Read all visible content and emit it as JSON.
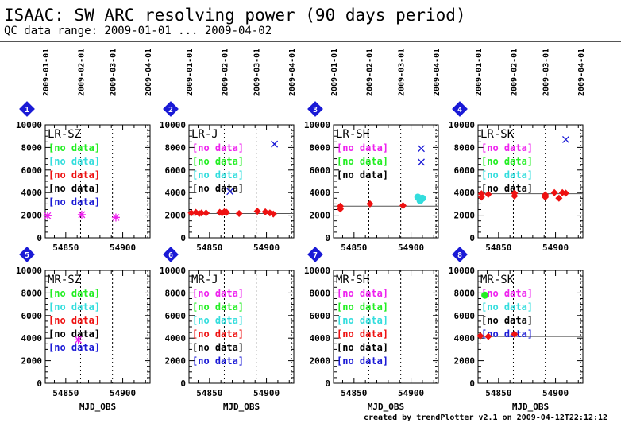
{
  "header": {
    "title": "ISAAC: SW ARC resolving power (90 days period)",
    "subtitle": "QC data range: 2009-01-01 ... 2009-04-02"
  },
  "footer": "created by trendPlotter v2.1 on 2009-04-12T22:12:12",
  "colors": {
    "green": "#22ee22",
    "cyan": "#33dddd",
    "red": "#ee1111",
    "black": "#000000",
    "blue": "#1a1ad6",
    "magenta": "#ee22ee",
    "marker_blue": "#1a1ad6"
  },
  "chart_data": {
    "type": "scatter",
    "date_ticks": [
      "2009-01-01",
      "2009-02-01",
      "2009-03-01",
      "2009-04-01"
    ],
    "date_tick_mjd": [
      54832,
      54863,
      54891,
      54922
    ],
    "xlim": [
      54832,
      54924
    ],
    "ylim": [
      0,
      10000
    ],
    "xticks": [
      54850,
      54900
    ],
    "yticks": [
      0,
      2000,
      4000,
      6000,
      8000,
      10000
    ],
    "xlabel": "MJD_OBS",
    "panels": [
      {
        "number": "1",
        "title": "LR-SZ",
        "reference": null,
        "legend": [
          {
            "text": "[no data]",
            "color": "green"
          },
          {
            "text": "[no data]",
            "color": "cyan"
          },
          {
            "text": "[no data]",
            "color": "red"
          },
          {
            "text": "[no data]",
            "color": "black"
          },
          {
            "text": "[no data]",
            "color": "blue"
          }
        ],
        "series": [
          {
            "marker": "star",
            "color": "magenta",
            "points": [
              [
                54834,
                1950
              ],
              [
                54864,
                2050
              ],
              [
                54894,
                1800
              ]
            ]
          }
        ]
      },
      {
        "number": "2",
        "title": "LR-J",
        "reference": 2150,
        "legend": [
          {
            "text": "[no data]",
            "color": "magenta"
          },
          {
            "text": "[no data]",
            "color": "green"
          },
          {
            "text": "[no data]",
            "color": "cyan"
          },
          {
            "text": "[no data]",
            "color": "black"
          }
        ],
        "series": [
          {
            "marker": "diamond",
            "color": "red",
            "points": [
              [
                54834,
                2200
              ],
              [
                54838,
                2250
              ],
              [
                54841,
                2150
              ],
              [
                54843,
                2200
              ],
              [
                54847,
                2200
              ],
              [
                54859,
                2250
              ],
              [
                54861,
                2200
              ],
              [
                54863,
                2300
              ],
              [
                54865,
                2250
              ],
              [
                54876,
                2150
              ],
              [
                54892,
                2350
              ],
              [
                54899,
                2300
              ],
              [
                54903,
                2200
              ],
              [
                54906,
                2100
              ]
            ]
          },
          {
            "marker": "cross",
            "color": "marker_blue",
            "points": [
              [
                54868,
                4100
              ],
              [
                54907,
                8300
              ]
            ]
          }
        ]
      },
      {
        "number": "3",
        "title": "LR-SH",
        "reference": 2800,
        "legend": [
          {
            "text": "[no data]",
            "color": "magenta"
          },
          {
            "text": "[no data]",
            "color": "green"
          },
          {
            "text": "[no data]",
            "color": "black"
          }
        ],
        "series": [
          {
            "marker": "diamond",
            "color": "red",
            "points": [
              [
                54838,
                2550
              ],
              [
                54838,
                2800
              ],
              [
                54864,
                3000
              ],
              [
                54893,
                2850
              ]
            ]
          },
          {
            "marker": "circle",
            "color": "cyan",
            "points": [
              [
                54906,
                3600
              ],
              [
                54908,
                3300
              ],
              [
                54910,
                3500
              ]
            ]
          },
          {
            "marker": "cross",
            "color": "marker_blue",
            "points": [
              [
                54909,
                7900
              ],
              [
                54909,
                6700
              ]
            ]
          }
        ]
      },
      {
        "number": "4",
        "title": "LR-SK",
        "reference": 3900,
        "legend": [
          {
            "text": "[no data]",
            "color": "magenta"
          },
          {
            "text": "[no data]",
            "color": "green"
          },
          {
            "text": "[no data]",
            "color": "cyan"
          },
          {
            "text": "[no data]",
            "color": "black"
          }
        ],
        "series": [
          {
            "marker": "diamond",
            "color": "red",
            "points": [
              [
                54835,
                3900
              ],
              [
                54835,
                3600
              ],
              [
                54841,
                3850
              ],
              [
                54864,
                3950
              ],
              [
                54864,
                3700
              ],
              [
                54891,
                3800
              ],
              [
                54891,
                3600
              ],
              [
                54899,
                4000
              ],
              [
                54903,
                3500
              ],
              [
                54906,
                4000
              ],
              [
                54909,
                3950
              ]
            ]
          },
          {
            "marker": "cross",
            "color": "marker_blue",
            "points": [
              [
                54909,
                8700
              ]
            ]
          }
        ]
      },
      {
        "number": "5",
        "title": "MR-SZ",
        "reference": null,
        "legend": [
          {
            "text": "[no data]",
            "color": "green"
          },
          {
            "text": "[no data]",
            "color": "cyan"
          },
          {
            "text": "[no data]",
            "color": "red"
          },
          {
            "text": "[no data]",
            "color": "black"
          },
          {
            "text": "[no data]",
            "color": "blue"
          }
        ],
        "series": [
          {
            "marker": "star",
            "color": "magenta",
            "points": [
              [
                54861,
                3850
              ]
            ]
          }
        ]
      },
      {
        "number": "6",
        "title": "MR-J",
        "reference": null,
        "legend": [
          {
            "text": "[no data]",
            "color": "magenta"
          },
          {
            "text": "[no data]",
            "color": "green"
          },
          {
            "text": "[no data]",
            "color": "cyan"
          },
          {
            "text": "[no data]",
            "color": "red"
          },
          {
            "text": "[no data]",
            "color": "black"
          },
          {
            "text": "[no data]",
            "color": "blue"
          }
        ],
        "series": []
      },
      {
        "number": "7",
        "title": "MR-SH",
        "reference": null,
        "legend": [
          {
            "text": "[no data]",
            "color": "magenta"
          },
          {
            "text": "[no data]",
            "color": "green"
          },
          {
            "text": "[no data]",
            "color": "cyan"
          },
          {
            "text": "[no data]",
            "color": "red"
          },
          {
            "text": "[no data]",
            "color": "black"
          },
          {
            "text": "[no data]",
            "color": "blue"
          }
        ],
        "series": []
      },
      {
        "number": "8",
        "title": "MR-SK",
        "reference": 4150,
        "legend": [
          {
            "text": "[no data]",
            "color": "magenta"
          },
          {
            "text": "[no data]",
            "color": "cyan"
          },
          {
            "text": "[no data]",
            "color": "black"
          },
          {
            "text": "[no data]",
            "color": "blue"
          }
        ],
        "series": [
          {
            "marker": "circle",
            "color": "green",
            "points": [
              [
                54838,
                7800
              ]
            ]
          },
          {
            "marker": "diamond",
            "color": "red",
            "points": [
              [
                54834,
                4200
              ],
              [
                54841,
                4150
              ],
              [
                54864,
                4350
              ]
            ]
          }
        ]
      }
    ]
  }
}
